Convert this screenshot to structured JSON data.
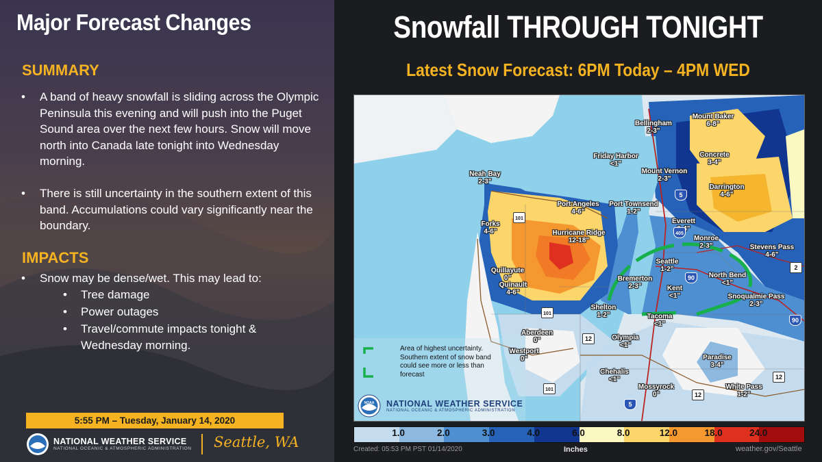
{
  "left": {
    "title": "Major Forecast Changes",
    "summary_heading": "SUMMARY",
    "summary_bullets": [
      "A band of heavy snowfall is sliding across the Olympic Peninsula this evening and will push into the Puget Sound area over the next few hours. Snow will move north into Canada late tonight into Wednesday morning.",
      "There is still uncertainty in the southern extent of this band. Accumulations could vary significantly near the boundary."
    ],
    "impacts_heading": "IMPACTS",
    "impacts_bullet": "Snow may be dense/wet. This may lead to:",
    "impacts_sub": [
      "Tree damage",
      "Power outages",
      "Travel/commute impacts tonight & Wednesday morning."
    ],
    "bullet_glyph": "•",
    "timestamp": "5:55 PM – Tuesday, January 14, 2020",
    "agency": "NATIONAL WEATHER SERVICE",
    "agency_sub": "NATIONAL OCEANIC & ATMOSPHERIC ADMINISTRATION",
    "office": "Seattle, WA"
  },
  "right": {
    "title": "Snowfall THROUGH TONIGHT",
    "subtitle": "Latest Snow Forecast: 6PM Today – 4PM WED",
    "legend_note": "Area of highest uncertainty. Southern extent of snow band could see more or less than forecast",
    "map_agency": "NATIONAL WEATHER SERVICE",
    "map_agency_sub": "NATIONAL OCEANIC & ATMOSPHERIC ADMINISTRATION",
    "map_logo_text": "NOAA",
    "created": "Created: 05:53 PM PST 01/14/2020",
    "units": "Inches",
    "site": "weather.gov/Seattle"
  },
  "locations": [
    {
      "name": "Bellingham",
      "amount": "2-3\""
    },
    {
      "name": "Mount Baker",
      "amount": "6-8\""
    },
    {
      "name": "Friday Harbor",
      "amount": "<1\""
    },
    {
      "name": "Concrete",
      "amount": "3-4\""
    },
    {
      "name": "Mount Vernon",
      "amount": "2-3\""
    },
    {
      "name": "Neah Bay",
      "amount": "2-3\""
    },
    {
      "name": "Darrington",
      "amount": "4-6\""
    },
    {
      "name": "Port Angeles",
      "amount": "4-6\""
    },
    {
      "name": "Port Townsend",
      "amount": "1-2\""
    },
    {
      "name": "Forks",
      "amount": "4-6\""
    },
    {
      "name": "Everett",
      "amount": "3-4\""
    },
    {
      "name": "Hurricane Ridge",
      "amount": "12-18\""
    },
    {
      "name": "Monroe",
      "amount": "2-3\""
    },
    {
      "name": "Stevens Pass",
      "amount": "4-6\""
    },
    {
      "name": "Seattle",
      "amount": "1-2\""
    },
    {
      "name": "Quillayute",
      "amount": "0\""
    },
    {
      "name": "North Bend",
      "amount": "<1\""
    },
    {
      "name": "Bremerton",
      "amount": "2-3\""
    },
    {
      "name": "Quinault",
      "amount": "4-6\""
    },
    {
      "name": "Kent",
      "amount": "<1\""
    },
    {
      "name": "Snoqualmie Pass",
      "amount": "2-3\""
    },
    {
      "name": "Shelton",
      "amount": "1-2\""
    },
    {
      "name": "Tacoma",
      "amount": "<1\""
    },
    {
      "name": "Aberdeen",
      "amount": "0\""
    },
    {
      "name": "Olympia",
      "amount": "<1\""
    },
    {
      "name": "Westport",
      "amount": "0\""
    },
    {
      "name": "Paradise",
      "amount": "3-4\""
    },
    {
      "name": "Chehalis",
      "amount": "<1\""
    },
    {
      "name": "Mossyrock",
      "amount": "0\""
    },
    {
      "name": "White Pass",
      "amount": "1-2\""
    }
  ],
  "highways": [
    "5",
    "405",
    "90",
    "101",
    "12",
    "2"
  ],
  "scale": {
    "labels": [
      "1.0",
      "2.0",
      "3.0",
      "4.0",
      "6.0",
      "8.0",
      "12.0",
      "18.0",
      "24.0"
    ],
    "colors": [
      "#c5dcee",
      "#8db8e0",
      "#4d8fd1",
      "#2562b8",
      "#11368f",
      "#fcf8c2",
      "#fcd66b",
      "#f5982f",
      "#df2f1f",
      "#a30d0d"
    ]
  },
  "colors": {
    "accent": "#f5b321",
    "water": "#8fd0ea",
    "uncertainty_outline": "#17b04d"
  }
}
